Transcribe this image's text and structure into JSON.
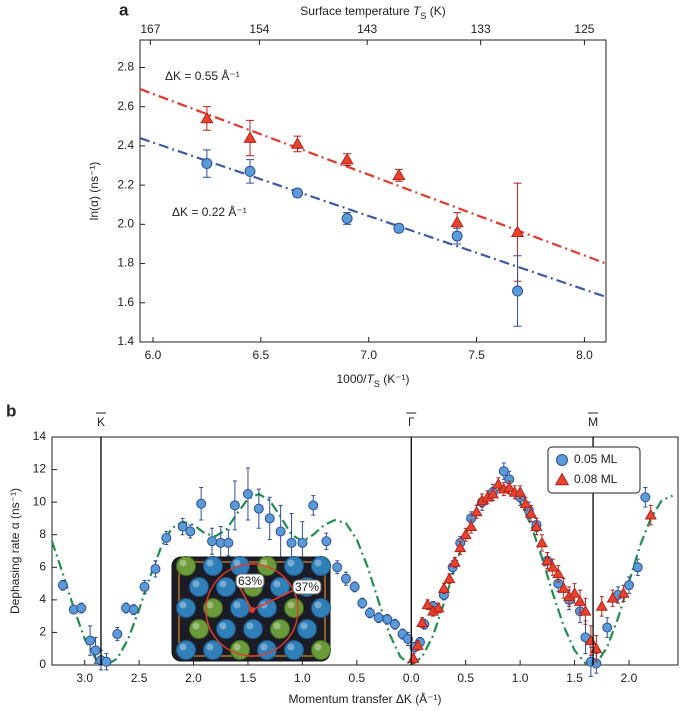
{
  "chart_data": [
    {
      "panel": "a",
      "type": "scatter",
      "x2label": [
        "Surface temperature ",
        "T",
        "S",
        " (K)"
      ],
      "xlabel": [
        "1000/",
        "T",
        "S",
        " (K⁻¹)"
      ],
      "ylabel": "ln(α) (ns⁻¹)",
      "xlim": [
        5.94,
        8.1
      ],
      "xticks": [
        {
          "value": 6,
          "label": "6.0"
        },
        6.5,
        {
          "value": 7,
          "label": "7.0"
        },
        7.5,
        {
          "value": 8,
          "label": "8.0"
        }
      ],
      "x2ticks": [
        167,
        154,
        143,
        133,
        125
      ],
      "ylim": [
        1.4,
        2.94
      ],
      "yticks": [
        1.4,
        1.6,
        1.8,
        {
          "value": 2,
          "label": "2.0"
        },
        2.2,
        2.4,
        2.6,
        2.8
      ],
      "series": [
        {
          "name": "ΔK = 0.55 Å⁻¹",
          "color": "#e8432f",
          "edgecolor": "#b3231a",
          "marker": "triangle",
          "x": [
            6.25,
            6.45,
            6.67,
            6.9,
            7.14,
            7.41,
            7.69
          ],
          "values": [
            2.54,
            2.44,
            2.41,
            2.33,
            2.25,
            2.01,
            1.96
          ],
          "errors": [
            0.06,
            0.09,
            0.04,
            0.03,
            0.03,
            0.05,
            0.25
          ]
        },
        {
          "name": "ΔK = 0.22 Å⁻¹",
          "color": "#5b9bd5",
          "edgecolor": "#2e4f9a",
          "marker": "circle",
          "x": [
            6.25,
            6.45,
            6.67,
            6.9,
            7.14,
            7.41,
            7.69
          ],
          "values": [
            2.31,
            2.27,
            2.16,
            2.03,
            1.98,
            1.94,
            1.66
          ],
          "errors": [
            0.07,
            0.06,
            0.02,
            0.03,
            0.02,
            0.04,
            0.18
          ]
        }
      ],
      "fits": [
        {
          "color": "#e0382b",
          "x": [
            5.94,
            8.1
          ],
          "values": [
            2.69,
            1.8
          ]
        },
        {
          "color": "#3c5aa6",
          "x": [
            5.94,
            8.1
          ],
          "values": [
            2.44,
            1.63
          ]
        }
      ]
    },
    {
      "panel": "b",
      "type": "scatter",
      "xlabel": "Momentum transfer ΔK (Å⁻¹)",
      "ylabel": "Dephasing rate α (ns⁻¹)",
      "xlim": [
        -3.3,
        2.45
      ],
      "xticks": [
        {
          "value": -3,
          "label": "3.0"
        },
        {
          "value": -2.5,
          "label": "2.5"
        },
        {
          "value": -2,
          "label": "2.0"
        },
        {
          "value": -1.5,
          "label": "1.5"
        },
        {
          "value": -1,
          "label": "1.0"
        },
        {
          "value": -0.5,
          "label": "0.5"
        },
        {
          "value": 0,
          "label": "0.0"
        },
        {
          "value": 0.5,
          "label": "0.5"
        },
        {
          "value": 1,
          "label": "1.0"
        },
        {
          "value": 1.5,
          "label": "1.5"
        },
        {
          "value": 2,
          "label": "2.0"
        }
      ],
      "ylim": [
        0,
        14
      ],
      "yticks": [
        0,
        2,
        4,
        6,
        8,
        10,
        12,
        14
      ],
      "legend": "upper right",
      "symmetry_points": [
        {
          "x": -2.85,
          "label": "K"
        },
        {
          "x": 0,
          "label": "Γ"
        },
        {
          "x": 1.67,
          "label": "M"
        }
      ],
      "inset_labels": [
        "63%",
        "37%"
      ],
      "series": [
        {
          "name": "0.05 ML",
          "color": "#5b9bd5",
          "edgecolor": "#2e4f9a",
          "marker": "circle",
          "x": [
            -3.2,
            -3.1,
            -3.03,
            -2.95,
            -2.9,
            -2.85,
            -2.8,
            -2.7,
            -2.62,
            -2.55,
            -2.45,
            -2.35,
            -2.25,
            -2.1,
            -2.03,
            -1.93,
            -1.83,
            -1.75,
            -1.68,
            -1.62,
            -1.5,
            -1.4,
            -1.3,
            -1.2,
            -1.1,
            -1.0,
            -0.9,
            -0.78,
            -0.68,
            -0.6,
            -0.52,
            -0.45,
            -0.38,
            -0.3,
            -0.22,
            -0.15,
            -0.08,
            -0.03,
            0.03,
            0.08,
            0.12,
            0.2,
            0.3,
            0.38,
            0.45,
            0.55,
            0.65,
            0.75,
            0.85,
            0.9,
            1.0,
            1.08,
            1.15,
            1.25,
            1.35,
            1.45,
            1.55,
            1.6,
            1.65,
            1.7,
            1.8,
            1.9,
            2.0,
            2.08,
            2.15
          ],
          "values": [
            4.9,
            3.4,
            3.5,
            1.5,
            0.9,
            0.3,
            0.2,
            1.9,
            3.5,
            3.4,
            4.8,
            5.9,
            7.8,
            8.5,
            8.2,
            9.9,
            7.6,
            7.5,
            7.5,
            9.8,
            10.5,
            9.6,
            9.0,
            8.2,
            7.5,
            7.5,
            9.8,
            7.6,
            6.0,
            5.3,
            4.8,
            3.8,
            3.2,
            2.9,
            2.8,
            2.5,
            1.9,
            1.6,
            1.1,
            1.4,
            2.5,
            3.6,
            4.3,
            6.0,
            7.5,
            9.0,
            10.0,
            10.6,
            11.9,
            11.4,
            10.3,
            9.5,
            8.6,
            6.4,
            5.0,
            4.0,
            3.3,
            1.7,
            0.2,
            0.1,
            2.3,
            4.3,
            4.9,
            6.0,
            10.3
          ],
          "errors": [
            0.3,
            0.2,
            0.3,
            0.9,
            0.8,
            0.6,
            0.5,
            0.4,
            0.3,
            0.3,
            0.4,
            0.5,
            0.4,
            0.5,
            0.4,
            1.0,
            0.8,
            1.0,
            0.8,
            1.5,
            1.6,
            1.2,
            1.3,
            1.6,
            1.8,
            1.3,
            0.6,
            0.5,
            0.4,
            0.4,
            0.3,
            0.3,
            0.3,
            0.3,
            0.3,
            0.3,
            0.3,
            0.4,
            0.3,
            0.3,
            0.3,
            0.3,
            0.3,
            0.4,
            0.4,
            0.4,
            0.5,
            0.5,
            0.5,
            0.5,
            0.5,
            0.5,
            0.4,
            0.5,
            0.5,
            0.6,
            0.7,
            1.0,
            0.9,
            0.6,
            0.6,
            0.5,
            0.5,
            0.5,
            0.6
          ]
        },
        {
          "name": "0.08 ML",
          "color": "#e8432f",
          "edgecolor": "#b3231a",
          "marker": "triangle",
          "x": [
            0.02,
            0.06,
            0.1,
            0.15,
            0.2,
            0.25,
            0.3,
            0.35,
            0.4,
            0.45,
            0.5,
            0.55,
            0.6,
            0.65,
            0.7,
            0.75,
            0.8,
            0.85,
            0.9,
            0.95,
            1.0,
            1.05,
            1.1,
            1.15,
            1.2,
            1.25,
            1.3,
            1.35,
            1.4,
            1.45,
            1.5,
            1.55,
            1.6,
            1.65,
            1.7,
            1.75,
            1.85,
            1.95,
            2.2
          ],
          "values": [
            0.4,
            1.2,
            2.6,
            3.7,
            3.3,
            3.5,
            4.7,
            5.3,
            6.3,
            7.2,
            8.0,
            8.5,
            9.4,
            10.1,
            10.3,
            10.5,
            11.1,
            10.8,
            10.9,
            10.6,
            10.6,
            9.9,
            9.3,
            8.5,
            7.5,
            6.4,
            6.0,
            5.6,
            4.7,
            4.2,
            4.4,
            3.9,
            3.3,
            1.5,
            1.0,
            3.6,
            4.1,
            4.4,
            9.2
          ],
          "errors": [
            0.3,
            0.3,
            0.3,
            0.3,
            0.3,
            0.3,
            0.3,
            0.3,
            0.3,
            0.4,
            0.4,
            0.4,
            0.4,
            0.4,
            0.4,
            0.4,
            0.4,
            0.4,
            0.4,
            0.4,
            0.4,
            0.4,
            0.5,
            0.5,
            0.5,
            0.5,
            0.5,
            0.5,
            0.6,
            0.6,
            0.6,
            0.7,
            0.8,
            0.9,
            0.8,
            0.6,
            0.5,
            0.5,
            0.6
          ]
        }
      ],
      "fits": [
        {
          "color": "#1f8f4e",
          "x": [
            -3.3,
            -3.2,
            -3.1,
            -3.0,
            -2.9,
            -2.8,
            -2.7,
            -2.6,
            -2.5,
            -2.4,
            -2.3,
            -2.2,
            -2.1,
            -2.0,
            -1.9,
            -1.8,
            -1.7,
            -1.6,
            -1.5,
            -1.4,
            -1.3,
            -1.2,
            -1.1,
            -1.0,
            -0.9,
            -0.8,
            -0.7,
            -0.6,
            -0.5,
            -0.4,
            -0.3,
            -0.2,
            -0.1,
            0,
            0.1,
            0.2,
            0.3,
            0.4,
            0.5,
            0.6,
            0.7,
            0.8,
            0.9,
            1.0,
            1.1,
            1.2,
            1.3,
            1.4,
            1.5,
            1.6,
            1.65,
            1.7,
            1.8,
            1.9,
            2.0,
            2.1,
            2.2,
            2.3,
            2.4
          ],
          "values": [
            7.6,
            5.6,
            3.5,
            1.6,
            0.4,
            0,
            0.4,
            1.6,
            3.4,
            5.4,
            7.2,
            8.4,
            8.8,
            8.6,
            8.1,
            7.9,
            8.3,
            9.3,
            10.2,
            10.5,
            10.1,
            9.1,
            8.0,
            7.6,
            8.0,
            8.6,
            8.9,
            8.7,
            7.7,
            6.0,
            3.9,
            1.9,
            0.5,
            0,
            0.5,
            1.8,
            3.8,
            6.0,
            8.0,
            9.5,
            10.4,
            10.8,
            10.7,
            10.0,
            8.6,
            6.6,
            4.4,
            2.4,
            0.9,
            0.1,
            0,
            0.1,
            1.1,
            2.9,
            5.1,
            7.3,
            9.0,
            10.1,
            10.4
          ]
        }
      ]
    }
  ]
}
